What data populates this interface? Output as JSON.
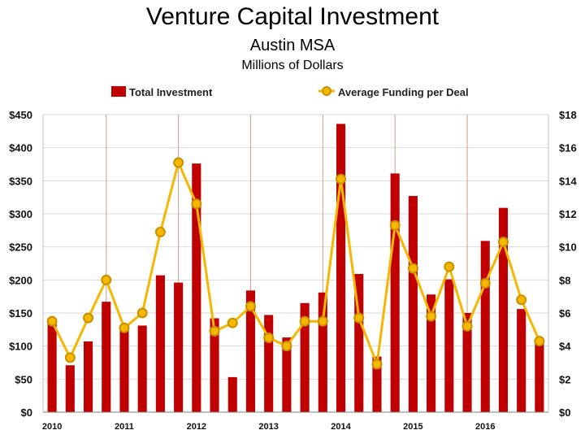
{
  "chart_data": {
    "type": "bar",
    "title": "Venture Capital Investment",
    "subtitle": "Austin MSA",
    "units_label": "Millions of Dollars",
    "colors": {
      "bar": "#c00000",
      "line": "#f5b700",
      "marker_fill": "#f5b700",
      "marker_edge": "#c89000",
      "year_divider": "#c8a08a"
    },
    "legend": {
      "placement": "top",
      "entries": [
        "Total Investment",
        "Average Funding per Deal"
      ]
    },
    "quarters_per_year": 4,
    "year_labels": [
      "2010",
      "2011",
      "2012",
      "2013",
      "2014",
      "2015",
      "2016"
    ],
    "left_axis": {
      "range": [
        0,
        450
      ],
      "ticks": [
        "$0",
        "$50",
        "$100",
        "$150",
        "$200",
        "$250",
        "$300",
        "$350",
        "$400",
        "$450"
      ]
    },
    "right_axis": {
      "range": [
        0,
        18
      ],
      "ticks": [
        "$0",
        "$2",
        "$4",
        "$6",
        "$8",
        "$10",
        "$12",
        "$14",
        "$16",
        "$18"
      ]
    },
    "series": [
      {
        "name": "Total Investment",
        "kind": "bar",
        "axis": "left",
        "values": [
          137,
          71,
          107,
          167,
          132,
          131,
          207,
          196,
          376,
          142,
          53,
          184,
          147,
          113,
          165,
          181,
          436,
          209,
          84,
          361,
          327,
          178,
          201,
          150,
          259,
          309,
          156,
          107
        ]
      },
      {
        "name": "Average Funding per Deal",
        "kind": "line",
        "axis": "right",
        "values": [
          5.5,
          3.3,
          5.7,
          8.0,
          5.1,
          6.0,
          10.9,
          15.1,
          12.6,
          4.9,
          5.4,
          6.4,
          4.5,
          4.0,
          5.5,
          5.5,
          14.1,
          5.7,
          2.9,
          11.3,
          8.7,
          5.8,
          8.8,
          5.2,
          7.8,
          10.3,
          6.8,
          4.3
        ]
      }
    ],
    "grid": true
  }
}
